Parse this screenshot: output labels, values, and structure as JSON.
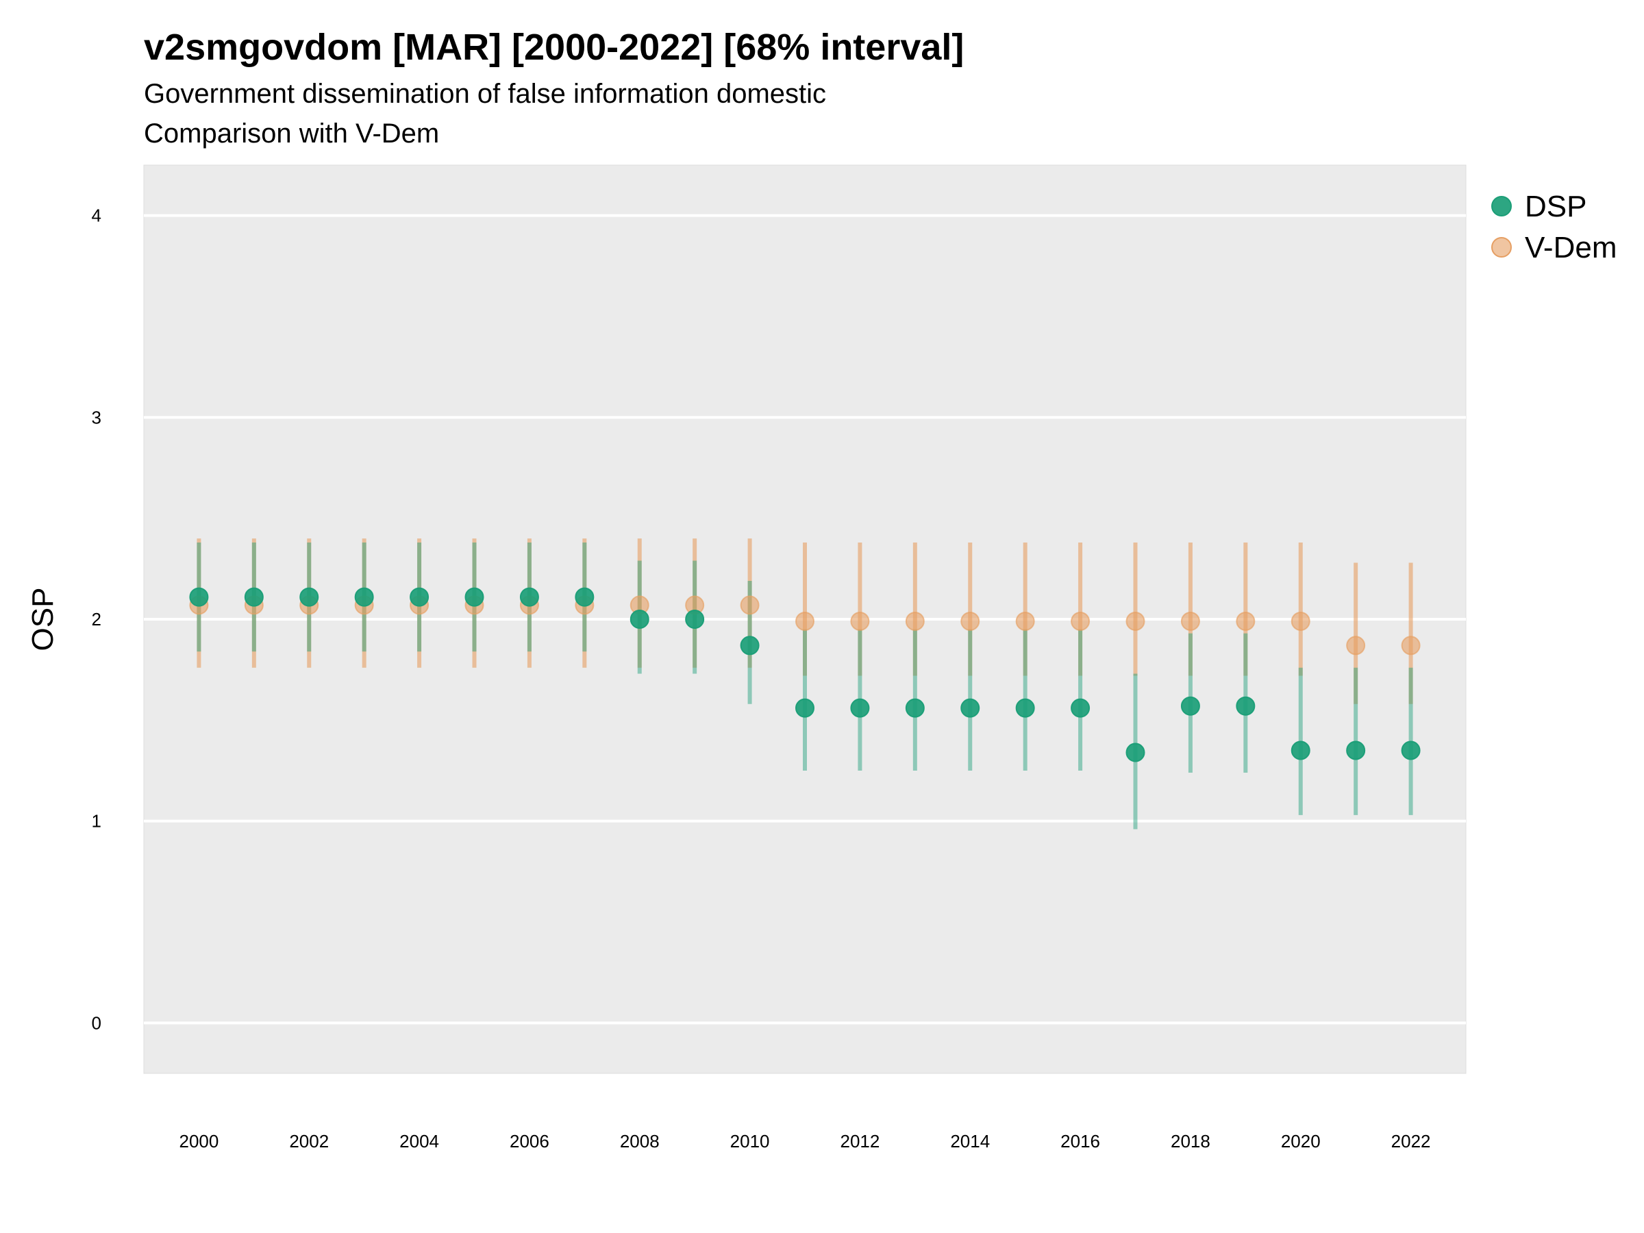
{
  "chart_data": {
    "type": "scatter",
    "title": "v2smgovdom [MAR] [2000-2022] [68% interval]",
    "subtitle": "Government dissemination of false information domestic",
    "subtitle2": "Comparison with V-Dem",
    "ylabel": "OSP",
    "xlabel": "",
    "ylim": [
      -0.25,
      4.25
    ],
    "xlim": [
      1999.0,
      2023.0
    ],
    "yticks": [
      0,
      1,
      2,
      3,
      4
    ],
    "xticks": [
      2000,
      2002,
      2004,
      2006,
      2008,
      2010,
      2012,
      2014,
      2016,
      2018,
      2020,
      2022
    ],
    "grid": true,
    "legend_position": "right",
    "x": [
      2000,
      2001,
      2002,
      2003,
      2004,
      2005,
      2006,
      2007,
      2008,
      2009,
      2010,
      2011,
      2012,
      2013,
      2014,
      2015,
      2016,
      2017,
      2018,
      2019,
      2020,
      2021,
      2022
    ],
    "series": [
      {
        "name": "V-Dem",
        "color": "#e69f63",
        "values": [
          2.07,
          2.07,
          2.07,
          2.07,
          2.07,
          2.07,
          2.07,
          2.07,
          2.07,
          2.07,
          2.07,
          1.99,
          1.99,
          1.99,
          1.99,
          1.99,
          1.99,
          1.99,
          1.99,
          1.99,
          1.99,
          1.87,
          1.87
        ],
        "lower": [
          1.76,
          1.76,
          1.76,
          1.76,
          1.76,
          1.76,
          1.76,
          1.76,
          1.76,
          1.76,
          1.76,
          1.72,
          1.72,
          1.72,
          1.72,
          1.72,
          1.72,
          1.72,
          1.72,
          1.72,
          1.72,
          1.58,
          1.58
        ],
        "upper": [
          2.4,
          2.4,
          2.4,
          2.4,
          2.4,
          2.4,
          2.4,
          2.4,
          2.4,
          2.4,
          2.4,
          2.38,
          2.38,
          2.38,
          2.38,
          2.38,
          2.38,
          2.38,
          2.38,
          2.38,
          2.38,
          2.28,
          2.28
        ]
      },
      {
        "name": "DSP",
        "color": "#1b9e77",
        "values": [
          2.11,
          2.11,
          2.11,
          2.11,
          2.11,
          2.11,
          2.11,
          2.11,
          2.0,
          2.0,
          1.87,
          1.56,
          1.56,
          1.56,
          1.56,
          1.56,
          1.56,
          1.34,
          1.57,
          1.57,
          1.35,
          1.35,
          1.35
        ],
        "lower": [
          1.84,
          1.84,
          1.84,
          1.84,
          1.84,
          1.84,
          1.84,
          1.84,
          1.73,
          1.73,
          1.58,
          1.25,
          1.25,
          1.25,
          1.25,
          1.25,
          1.25,
          0.96,
          1.24,
          1.24,
          1.03,
          1.03,
          1.03
        ],
        "upper": [
          2.38,
          2.38,
          2.38,
          2.38,
          2.38,
          2.38,
          2.38,
          2.38,
          2.29,
          2.29,
          2.19,
          1.95,
          1.95,
          1.95,
          1.95,
          1.95,
          1.95,
          1.73,
          1.93,
          1.93,
          1.76,
          1.76,
          1.76
        ]
      }
    ]
  }
}
